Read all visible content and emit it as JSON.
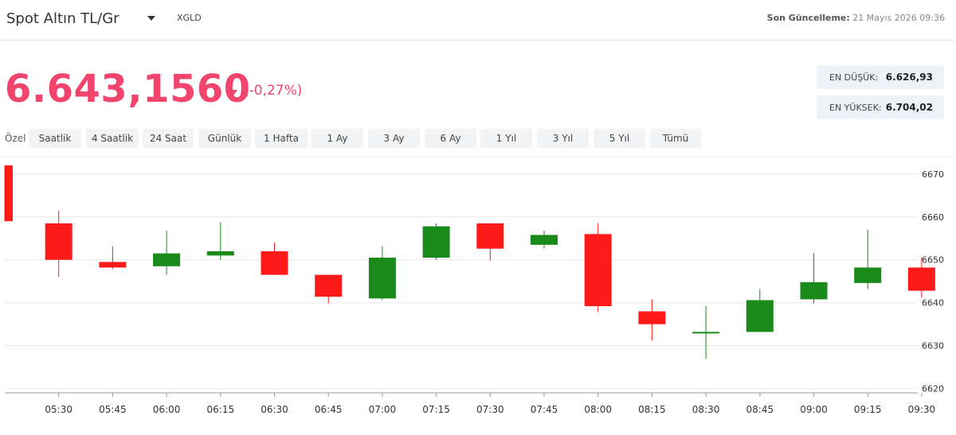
{
  "header": {
    "title": "Spot Altın TL/Gr",
    "symbol": "XGLD",
    "updated_label": "Son Güncelleme:",
    "updated_value": "21 Mayıs 2026 09:36"
  },
  "quote": {
    "price": "6.643,1560",
    "change": "(-0,27%)",
    "low_label": "EN DÜŞÜK:",
    "low_value": "6.626,93",
    "high_label": "EN YÜKSEK:",
    "high_value": "6.704,02"
  },
  "periods": {
    "label": "Özel",
    "options": [
      "Saatlik",
      "4 Saatlik",
      "24 Saat",
      "Günlük",
      "1 Hafta",
      "1 Ay",
      "3 Ay",
      "6 Ay",
      "1 Yıl",
      "3 Yıl",
      "5 Yıl",
      "Tümü"
    ]
  },
  "colors": {
    "up": "#1a8a1a",
    "down": "#ff1a1a",
    "accent": "#f2456e"
  },
  "chart_data": {
    "type": "candlestick",
    "x": [
      "05:15",
      "05:30",
      "05:45",
      "06:00",
      "06:15",
      "06:30",
      "06:45",
      "07:00",
      "07:15",
      "07:30",
      "07:45",
      "08:00",
      "08:15",
      "08:30",
      "08:45",
      "09:00",
      "09:15",
      "09:30"
    ],
    "xtick_labels": [
      "05:30",
      "05:45",
      "06:00",
      "06:15",
      "06:30",
      "06:45",
      "07:00",
      "07:15",
      "07:30",
      "07:45",
      "08:00",
      "08:15",
      "08:30",
      "08:45",
      "09:00",
      "09:15",
      "09:30"
    ],
    "open": [
      6672.0,
      6658.5,
      6649.5,
      6648.5,
      6651.0,
      6652.0,
      6646.5,
      6641.0,
      6650.5,
      6658.5,
      6653.5,
      6656.0,
      6638.0,
      6633.2,
      6633.2,
      6640.8,
      6644.6,
      6648.2
    ],
    "high": [
      6672.0,
      6661.5,
      6653.2,
      6656.8,
      6658.8,
      6654.0,
      6646.5,
      6653.2,
      6658.5,
      6658.5,
      6656.8,
      6658.5,
      6640.8,
      6639.2,
      6643.2,
      6651.6,
      6657.0,
      6650.6
    ],
    "low": [
      6659.0,
      6646.0,
      6647.8,
      6646.5,
      6650.0,
      6646.5,
      6639.8,
      6640.6,
      6650.0,
      6649.8,
      6652.6,
      6637.8,
      6631.2,
      6626.9,
      6633.2,
      6639.8,
      6643.2,
      6641.2
    ],
    "close": [
      6659.0,
      6650.0,
      6648.2,
      6651.5,
      6652.0,
      6646.5,
      6641.4,
      6650.5,
      6657.8,
      6652.6,
      6655.8,
      6639.2,
      6635.0,
      6633.2,
      6640.6,
      6644.8,
      6648.2,
      6642.8
    ],
    "yticks": [
      6620,
      6630,
      6640,
      6650,
      6660,
      6670
    ],
    "ylim": [
      6619,
      6672
    ],
    "grid": true
  }
}
